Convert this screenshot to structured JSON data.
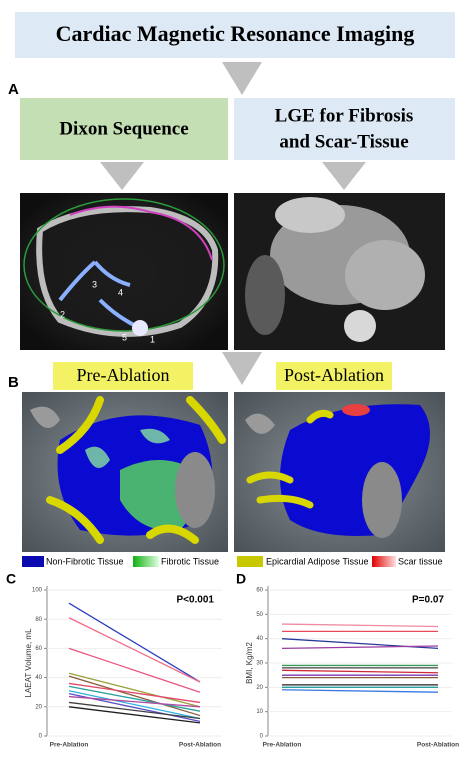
{
  "figure": {
    "title": "Cardiac Magnetic Resonance Imaging",
    "panel_labels": [
      "A",
      "B",
      "C",
      "D"
    ],
    "dixon": "Dixon Sequence",
    "lge": [
      "LGE for Fibrosis",
      "and Scar-Tissue"
    ],
    "image_labels": [
      "1",
      "2",
      "3",
      "4",
      "5"
    ],
    "pre_label": "Pre-Ablation",
    "post_label": "Post-Ablation",
    "legend": [
      "Non-Fibrotic Tissue",
      "Fibrotic Tissue",
      "Epicardial Adipose Tissue",
      "Scar tissue"
    ]
  },
  "chart_data": [
    {
      "type": "line",
      "y_label": "LAEAT Volume, mL",
      "annotation": "P<0.001",
      "categories": [
        "Pre-Ablation",
        "Post-Ablation"
      ],
      "ylim": [
        0,
        100
      ],
      "yticks": [
        0,
        20,
        40,
        60,
        80,
        100
      ],
      "series": [
        {
          "color": "#2a3fbf",
          "values": [
            91,
            37
          ]
        },
        {
          "color": "#f06a8a",
          "values": [
            81,
            37
          ]
        },
        {
          "color": "#e8587e",
          "values": [
            60,
            30
          ]
        },
        {
          "color": "#9aa23a",
          "values": [
            43,
            20
          ]
        },
        {
          "color": "#8a5a3a",
          "values": [
            41,
            14
          ]
        },
        {
          "color": "#e04a6a",
          "values": [
            36,
            23
          ]
        },
        {
          "color": "#2aa0a0",
          "values": [
            34,
            17
          ]
        },
        {
          "color": "#30b0e0",
          "values": [
            31,
            12
          ]
        },
        {
          "color": "#5a50c0",
          "values": [
            29,
            10
          ]
        },
        {
          "color": "#b04aa0",
          "values": [
            27,
            20
          ]
        },
        {
          "color": "#404040",
          "values": [
            23,
            12
          ]
        },
        {
          "color": "#202020",
          "values": [
            20,
            9
          ]
        }
      ]
    },
    {
      "type": "line",
      "y_label": "BMI, Kg/m2",
      "annotation": "P=0.07",
      "categories": [
        "Pre-Ablation",
        "Post-Ablation"
      ],
      "ylim": [
        0,
        60
      ],
      "yticks": [
        0,
        10,
        20,
        30,
        40,
        50,
        60
      ],
      "series": [
        {
          "color": "#f08aa0",
          "values": [
            46,
            45
          ]
        },
        {
          "color": "#e84a5a",
          "values": [
            43,
            43
          ]
        },
        {
          "color": "#2a3a9a",
          "values": [
            40,
            36
          ]
        },
        {
          "color": "#9a3aa0",
          "values": [
            36,
            37
          ]
        },
        {
          "color": "#3a9a5a",
          "values": [
            29,
            29
          ]
        },
        {
          "color": "#404040",
          "values": [
            28,
            28
          ]
        },
        {
          "color": "#d02a3a",
          "values": [
            27,
            26
          ]
        },
        {
          "color": "#7a3ab0",
          "values": [
            25,
            25
          ]
        },
        {
          "color": "#8a5a3a",
          "values": [
            24,
            24
          ]
        },
        {
          "color": "#202020",
          "values": [
            21,
            21
          ]
        },
        {
          "color": "#2aa0a0",
          "values": [
            20,
            20
          ]
        },
        {
          "color": "#3a7ae0",
          "values": [
            19,
            18
          ]
        }
      ]
    }
  ]
}
